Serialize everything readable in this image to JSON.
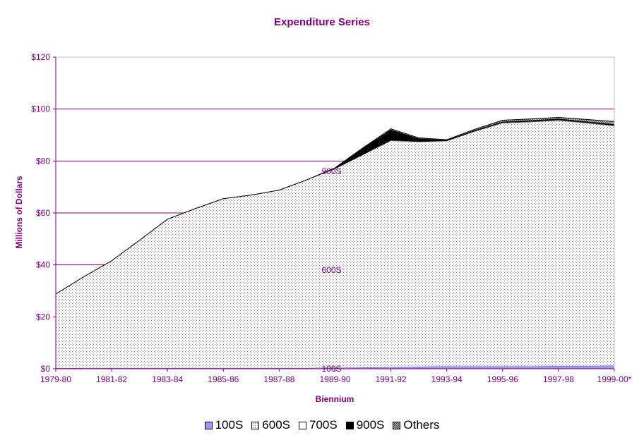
{
  "colors": {
    "title": "#800080",
    "axis": "#800080",
    "grid": "#800080",
    "s100": "#9999ff",
    "s600_bg": "#ffffff",
    "s600_dot": "#808080",
    "s700": "#ffffff",
    "s900": "#000000",
    "others": "#808080"
  },
  "chart_data": {
    "type": "area",
    "stacked": true,
    "title": "Expenditure Series",
    "xlabel": "Biennium",
    "ylabel": "Millions of Dollars",
    "ylim": [
      0,
      120
    ],
    "yticks": [
      "$0",
      "$20",
      "$40",
      "$60",
      "$80",
      "$100",
      "$120"
    ],
    "ytick_values": [
      0,
      20,
      40,
      60,
      80,
      100,
      120
    ],
    "x": [
      "1979-80",
      "1980-81",
      "1981-82",
      "1982-83",
      "1983-84",
      "1984-85",
      "1985-86",
      "1986-87",
      "1987-88",
      "1988-89",
      "1989-90",
      "1990-91",
      "1991-92",
      "1992-93",
      "1993-94",
      "1994-95",
      "1995-96",
      "1996-97",
      "1997-98",
      "1998-99",
      "1999-00*"
    ],
    "xticks": [
      "1979-80",
      "1981-82",
      "1983-84",
      "1985-86",
      "1987-88",
      "1989-90",
      "1991-92",
      "1993-94",
      "1995-96",
      "1997-98",
      "1999-00*"
    ],
    "grid": true,
    "legend_position": "bottom",
    "series": [
      {
        "name": "100S",
        "key": "s100",
        "values": [
          0.2,
          0.3,
          0.3,
          0.3,
          0.3,
          0.3,
          0.3,
          0.3,
          0.3,
          0.3,
          0.4,
          0.5,
          0.6,
          0.8,
          1.0,
          1.0,
          1.0,
          1.0,
          1.1,
          1.1,
          1.2
        ]
      },
      {
        "name": "600S",
        "key": "s600",
        "values": [
          28.6,
          35.1,
          41.3,
          49.2,
          57.3,
          61.4,
          65.2,
          66.6,
          68.5,
          72.5,
          76.6,
          81.9,
          87.2,
          86.6,
          86.7,
          90.4,
          93.6,
          94.0,
          94.5,
          93.5,
          92.3
        ]
      },
      {
        "name": "700S",
        "key": "s700",
        "values": [
          0,
          0,
          0,
          0,
          0,
          0,
          0,
          0,
          0,
          0,
          0.1,
          0.1,
          0.2,
          0.1,
          0.1,
          0.1,
          0.2,
          0.2,
          0.2,
          0.2,
          0.2
        ]
      },
      {
        "name": "900S",
        "key": "s900",
        "values": [
          0,
          0,
          0,
          0,
          0,
          0,
          0,
          0,
          0,
          0,
          0.3,
          2.4,
          4.0,
          1.1,
          0.2,
          0.3,
          0.3,
          0.4,
          0.4,
          0.4,
          0.4
        ]
      },
      {
        "name": "Others",
        "key": "others",
        "values": [
          0,
          0,
          0,
          0,
          0,
          0,
          0,
          0,
          0,
          0,
          0,
          0.2,
          0.4,
          0.3,
          0.2,
          0.4,
          0.6,
          0.6,
          0.6,
          0.8,
          1.1
        ]
      }
    ],
    "annotations": [
      {
        "text": "900S",
        "x": "1989-90",
        "y": 76
      },
      {
        "text": "600S",
        "x": "1989-90",
        "y": 38
      },
      {
        "text": "100S",
        "x": "1989-90",
        "y": 0
      }
    ]
  }
}
